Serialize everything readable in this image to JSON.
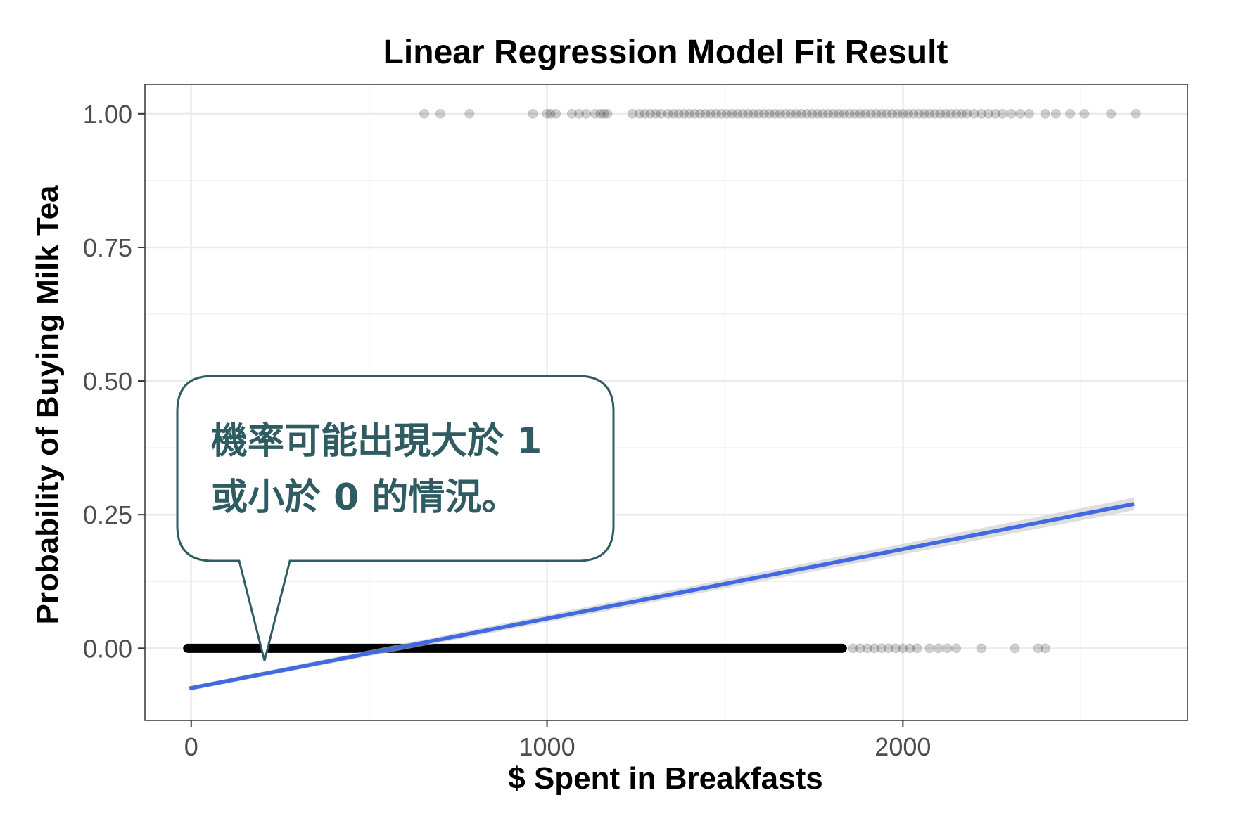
{
  "chart_data": {
    "type": "scatter",
    "title": "Linear Regression Model Fit Result",
    "xlabel": "$ Spent in Breakfasts",
    "ylabel": "Probability of Buying Milk Tea",
    "xlim": [
      -130,
      2800
    ],
    "ylim": [
      -0.135,
      1.055
    ],
    "x_ticks": [
      0,
      1000,
      2000
    ],
    "x_tick_labels": [
      "0",
      "1000",
      "2000"
    ],
    "y_ticks": [
      0,
      0.25,
      0.5,
      0.75,
      1.0
    ],
    "y_tick_labels": [
      "0.00",
      "0.25",
      "0.50",
      "0.75",
      "1.00"
    ],
    "grid": true,
    "series": [
      {
        "y": 1,
        "color": "#000000",
        "x": [
          655,
          700,
          782,
          960,
          1000,
          1010,
          1025,
          1070,
          1090,
          1110,
          1135,
          1150,
          1160,
          1170,
          1240,
          1260,
          1275,
          1290,
          1305,
          1320,
          1340,
          1355,
          1370,
          1385,
          1400,
          1415,
          1430,
          1445,
          1460,
          1475,
          1490,
          1505,
          1520,
          1535,
          1550,
          1565,
          1580,
          1595,
          1610,
          1625,
          1640,
          1655,
          1670,
          1685,
          1700,
          1715,
          1730,
          1745,
          1760,
          1775,
          1790,
          1805,
          1820,
          1835,
          1850,
          1865,
          1880,
          1895,
          1910,
          1925,
          1940,
          1955,
          1970,
          1985,
          2000,
          2015,
          2030,
          2045,
          2060,
          2075,
          2090,
          2105,
          2120,
          2135,
          2150,
          2165,
          2180,
          2200,
          2220,
          2240,
          2260,
          2280,
          2305,
          2330,
          2355,
          2400,
          2430,
          2470,
          2510,
          2585,
          2655
        ]
      },
      {
        "y": 0,
        "color": "#000000",
        "x_dense_range": [
          -10,
          1830
        ],
        "x": [
          1860,
          1880,
          1900,
          1920,
          1940,
          1960,
          1980,
          2000,
          2020,
          2040,
          2075,
          2100,
          2125,
          2150,
          2220,
          2315,
          2380,
          2400
        ]
      }
    ],
    "fit_line": {
      "x": [
        -5,
        2650
      ],
      "y": [
        -0.075,
        0.27
      ],
      "color": "#4169e1",
      "band_color": "#c8c8c8"
    },
    "annotation": {
      "lines": [
        "機率可能出現大於 1",
        "或小於 0 的情況。"
      ],
      "border_color": "#2f5b63",
      "text_color": "#2f5b63"
    }
  }
}
